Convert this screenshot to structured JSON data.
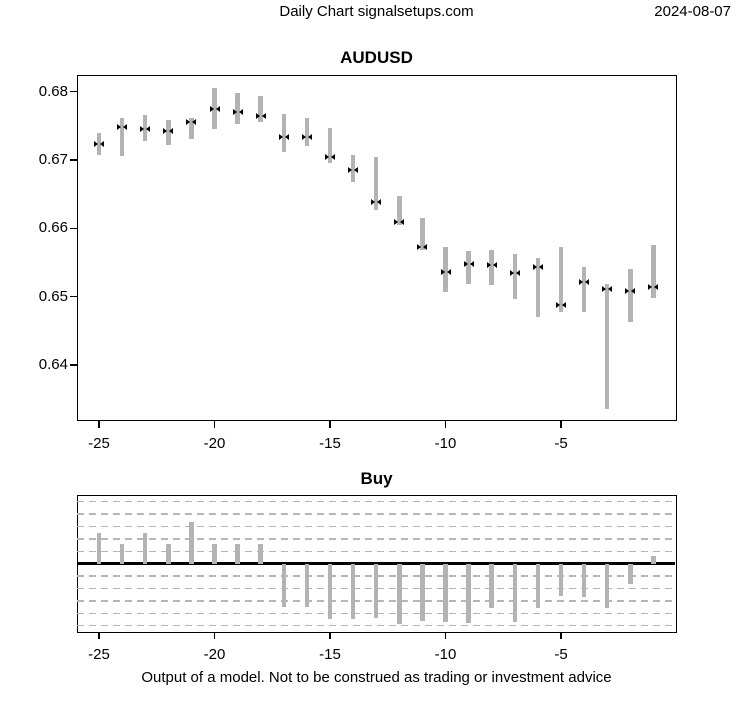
{
  "header": {
    "title": "Daily Chart signalsetups.com",
    "date": "2024-08-07"
  },
  "price_panel": {
    "title": "AUDUSD",
    "y_tick_labels": [
      "0.68",
      "0.67",
      "0.66",
      "0.65",
      "0.64"
    ],
    "x_tick_labels": [
      "-25",
      "-20",
      "-15",
      "-10",
      "-5"
    ]
  },
  "signal_panel": {
    "title": "Buy",
    "x_tick_labels": [
      "-25",
      "-20",
      "-15",
      "-10",
      "-5"
    ]
  },
  "footer": {
    "disclaimer": "Output of a model. Not to be construed as trading or investment advice"
  },
  "colors": {
    "bar_gray": "#b3b3b3",
    "marker_black": "#000000",
    "grid_dash_gray": "#b6b6b6",
    "axis_black": "#000000"
  },
  "chart_data": [
    {
      "type": "hlc-bar",
      "title": "AUDUSD",
      "x": [
        -25,
        -24,
        -23,
        -22,
        -21,
        -20,
        -19,
        -18,
        -17,
        -16,
        -15,
        -14,
        -13,
        -12,
        -11,
        -10,
        -9,
        -8,
        -7,
        -6,
        -5,
        -4,
        -3,
        -2,
        -1
      ],
      "high": [
        0.6739,
        0.6762,
        0.6766,
        0.6759,
        0.6762,
        0.6806,
        0.6798,
        0.6794,
        0.6768,
        0.6762,
        0.6747,
        0.6707,
        0.6705,
        0.6648,
        0.6615,
        0.6573,
        0.6567,
        0.6568,
        0.6562,
        0.6556,
        0.6572,
        0.6543,
        0.6519,
        0.6541,
        0.6575
      ],
      "low": [
        0.6707,
        0.6706,
        0.6728,
        0.6722,
        0.673,
        0.6746,
        0.6752,
        0.6756,
        0.6712,
        0.672,
        0.6695,
        0.6668,
        0.6627,
        0.6605,
        0.6568,
        0.6507,
        0.6519,
        0.6517,
        0.6496,
        0.647,
        0.6478,
        0.6478,
        0.6336,
        0.6463,
        0.6498
      ],
      "close": [
        0.6724,
        0.6749,
        0.6745,
        0.6743,
        0.6755,
        0.6774,
        0.6771,
        0.6765,
        0.6733,
        0.6733,
        0.6705,
        0.6685,
        0.6638,
        0.6609,
        0.6572,
        0.6536,
        0.6547,
        0.6546,
        0.6535,
        0.6544,
        0.6488,
        0.6521,
        0.6511,
        0.6508,
        0.6514
      ],
      "y_ticks": [
        0.68,
        0.67,
        0.66,
        0.65,
        0.64
      ],
      "x_ticks": [
        -25,
        -20,
        -15,
        -10,
        -5
      ],
      "ylim": [
        0.632,
        0.682
      ],
      "xlabel": "",
      "ylabel": "",
      "grid": false,
      "legend": "none"
    },
    {
      "type": "bar",
      "title": "Buy",
      "x": [
        -25,
        -24,
        -23,
        -22,
        -21,
        -20,
        -19,
        -18,
        -17,
        -16,
        -15,
        -14,
        -13,
        -12,
        -11,
        -10,
        -9,
        -8,
        -7,
        -6,
        -5,
        -4,
        -3,
        -2,
        -1
      ],
      "values": [
        2.5,
        1.6,
        2.5,
        1.6,
        3.4,
        1.6,
        1.6,
        1.6,
        -3.5,
        -3.5,
        -4.5,
        -4.5,
        -4.4,
        -4.9,
        -4.6,
        -4.7,
        -4.8,
        -3.6,
        -4.7,
        -3.6,
        -2.6,
        -2.7,
        -3.6,
        -1.6,
        0.6
      ],
      "x_ticks": [
        -25,
        -20,
        -15,
        -10,
        -5
      ],
      "ylim": [
        -5.5,
        5.5
      ],
      "gridline_positions": [
        -5,
        -4,
        -3,
        -2,
        -1,
        1,
        2,
        3,
        4,
        5
      ],
      "gridline_style": "dashed",
      "zero_line": true,
      "xlabel": "",
      "ylabel": "",
      "legend": "none"
    }
  ]
}
